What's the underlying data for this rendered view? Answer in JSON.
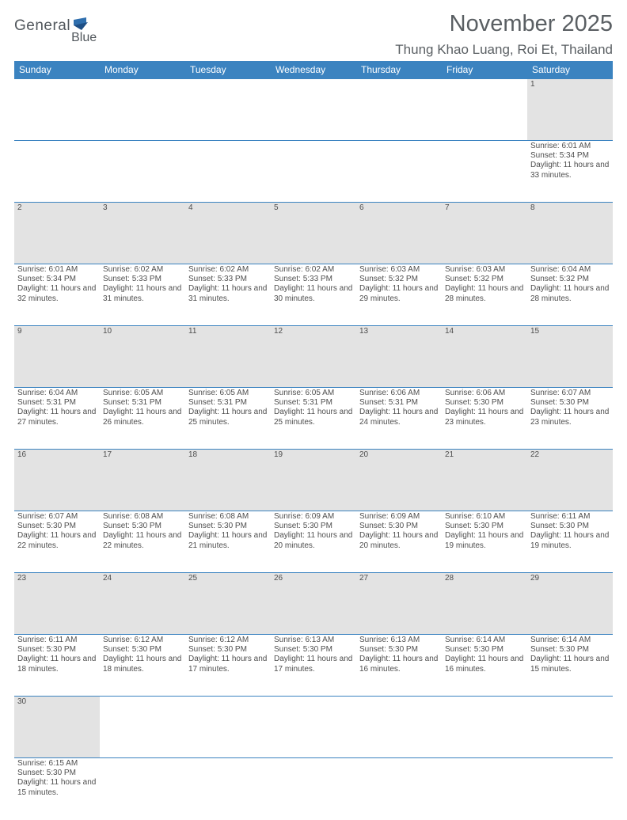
{
  "logo": {
    "text1": "General",
    "text2": "Blue"
  },
  "title": "November 2025",
  "location": "Thung Khao Luang, Roi Et, Thailand",
  "colors": {
    "header_bg": "#3b83c0",
    "header_text": "#ffffff",
    "daynum_bg": "#e3e3e3",
    "border": "#3b83c0",
    "text": "#4e4e4e",
    "title_text": "#5a5f63"
  },
  "weekdays": [
    "Sunday",
    "Monday",
    "Tuesday",
    "Wednesday",
    "Thursday",
    "Friday",
    "Saturday"
  ],
  "weeks": [
    [
      null,
      null,
      null,
      null,
      null,
      null,
      {
        "n": "1",
        "sr": "Sunrise: 6:01 AM",
        "ss": "Sunset: 5:34 PM",
        "dl": "Daylight: 11 hours and 33 minutes."
      }
    ],
    [
      {
        "n": "2",
        "sr": "Sunrise: 6:01 AM",
        "ss": "Sunset: 5:34 PM",
        "dl": "Daylight: 11 hours and 32 minutes."
      },
      {
        "n": "3",
        "sr": "Sunrise: 6:02 AM",
        "ss": "Sunset: 5:33 PM",
        "dl": "Daylight: 11 hours and 31 minutes."
      },
      {
        "n": "4",
        "sr": "Sunrise: 6:02 AM",
        "ss": "Sunset: 5:33 PM",
        "dl": "Daylight: 11 hours and 31 minutes."
      },
      {
        "n": "5",
        "sr": "Sunrise: 6:02 AM",
        "ss": "Sunset: 5:33 PM",
        "dl": "Daylight: 11 hours and 30 minutes."
      },
      {
        "n": "6",
        "sr": "Sunrise: 6:03 AM",
        "ss": "Sunset: 5:32 PM",
        "dl": "Daylight: 11 hours and 29 minutes."
      },
      {
        "n": "7",
        "sr": "Sunrise: 6:03 AM",
        "ss": "Sunset: 5:32 PM",
        "dl": "Daylight: 11 hours and 28 minutes."
      },
      {
        "n": "8",
        "sr": "Sunrise: 6:04 AM",
        "ss": "Sunset: 5:32 PM",
        "dl": "Daylight: 11 hours and 28 minutes."
      }
    ],
    [
      {
        "n": "9",
        "sr": "Sunrise: 6:04 AM",
        "ss": "Sunset: 5:31 PM",
        "dl": "Daylight: 11 hours and 27 minutes."
      },
      {
        "n": "10",
        "sr": "Sunrise: 6:05 AM",
        "ss": "Sunset: 5:31 PM",
        "dl": "Daylight: 11 hours and 26 minutes."
      },
      {
        "n": "11",
        "sr": "Sunrise: 6:05 AM",
        "ss": "Sunset: 5:31 PM",
        "dl": "Daylight: 11 hours and 25 minutes."
      },
      {
        "n": "12",
        "sr": "Sunrise: 6:05 AM",
        "ss": "Sunset: 5:31 PM",
        "dl": "Daylight: 11 hours and 25 minutes."
      },
      {
        "n": "13",
        "sr": "Sunrise: 6:06 AM",
        "ss": "Sunset: 5:31 PM",
        "dl": "Daylight: 11 hours and 24 minutes."
      },
      {
        "n": "14",
        "sr": "Sunrise: 6:06 AM",
        "ss": "Sunset: 5:30 PM",
        "dl": "Daylight: 11 hours and 23 minutes."
      },
      {
        "n": "15",
        "sr": "Sunrise: 6:07 AM",
        "ss": "Sunset: 5:30 PM",
        "dl": "Daylight: 11 hours and 23 minutes."
      }
    ],
    [
      {
        "n": "16",
        "sr": "Sunrise: 6:07 AM",
        "ss": "Sunset: 5:30 PM",
        "dl": "Daylight: 11 hours and 22 minutes."
      },
      {
        "n": "17",
        "sr": "Sunrise: 6:08 AM",
        "ss": "Sunset: 5:30 PM",
        "dl": "Daylight: 11 hours and 22 minutes."
      },
      {
        "n": "18",
        "sr": "Sunrise: 6:08 AM",
        "ss": "Sunset: 5:30 PM",
        "dl": "Daylight: 11 hours and 21 minutes."
      },
      {
        "n": "19",
        "sr": "Sunrise: 6:09 AM",
        "ss": "Sunset: 5:30 PM",
        "dl": "Daylight: 11 hours and 20 minutes."
      },
      {
        "n": "20",
        "sr": "Sunrise: 6:09 AM",
        "ss": "Sunset: 5:30 PM",
        "dl": "Daylight: 11 hours and 20 minutes."
      },
      {
        "n": "21",
        "sr": "Sunrise: 6:10 AM",
        "ss": "Sunset: 5:30 PM",
        "dl": "Daylight: 11 hours and 19 minutes."
      },
      {
        "n": "22",
        "sr": "Sunrise: 6:11 AM",
        "ss": "Sunset: 5:30 PM",
        "dl": "Daylight: 11 hours and 19 minutes."
      }
    ],
    [
      {
        "n": "23",
        "sr": "Sunrise: 6:11 AM",
        "ss": "Sunset: 5:30 PM",
        "dl": "Daylight: 11 hours and 18 minutes."
      },
      {
        "n": "24",
        "sr": "Sunrise: 6:12 AM",
        "ss": "Sunset: 5:30 PM",
        "dl": "Daylight: 11 hours and 18 minutes."
      },
      {
        "n": "25",
        "sr": "Sunrise: 6:12 AM",
        "ss": "Sunset: 5:30 PM",
        "dl": "Daylight: 11 hours and 17 minutes."
      },
      {
        "n": "26",
        "sr": "Sunrise: 6:13 AM",
        "ss": "Sunset: 5:30 PM",
        "dl": "Daylight: 11 hours and 17 minutes."
      },
      {
        "n": "27",
        "sr": "Sunrise: 6:13 AM",
        "ss": "Sunset: 5:30 PM",
        "dl": "Daylight: 11 hours and 16 minutes."
      },
      {
        "n": "28",
        "sr": "Sunrise: 6:14 AM",
        "ss": "Sunset: 5:30 PM",
        "dl": "Daylight: 11 hours and 16 minutes."
      },
      {
        "n": "29",
        "sr": "Sunrise: 6:14 AM",
        "ss": "Sunset: 5:30 PM",
        "dl": "Daylight: 11 hours and 15 minutes."
      }
    ],
    [
      {
        "n": "30",
        "sr": "Sunrise: 6:15 AM",
        "ss": "Sunset: 5:30 PM",
        "dl": "Daylight: 11 hours and 15 minutes."
      },
      null,
      null,
      null,
      null,
      null,
      null
    ]
  ]
}
